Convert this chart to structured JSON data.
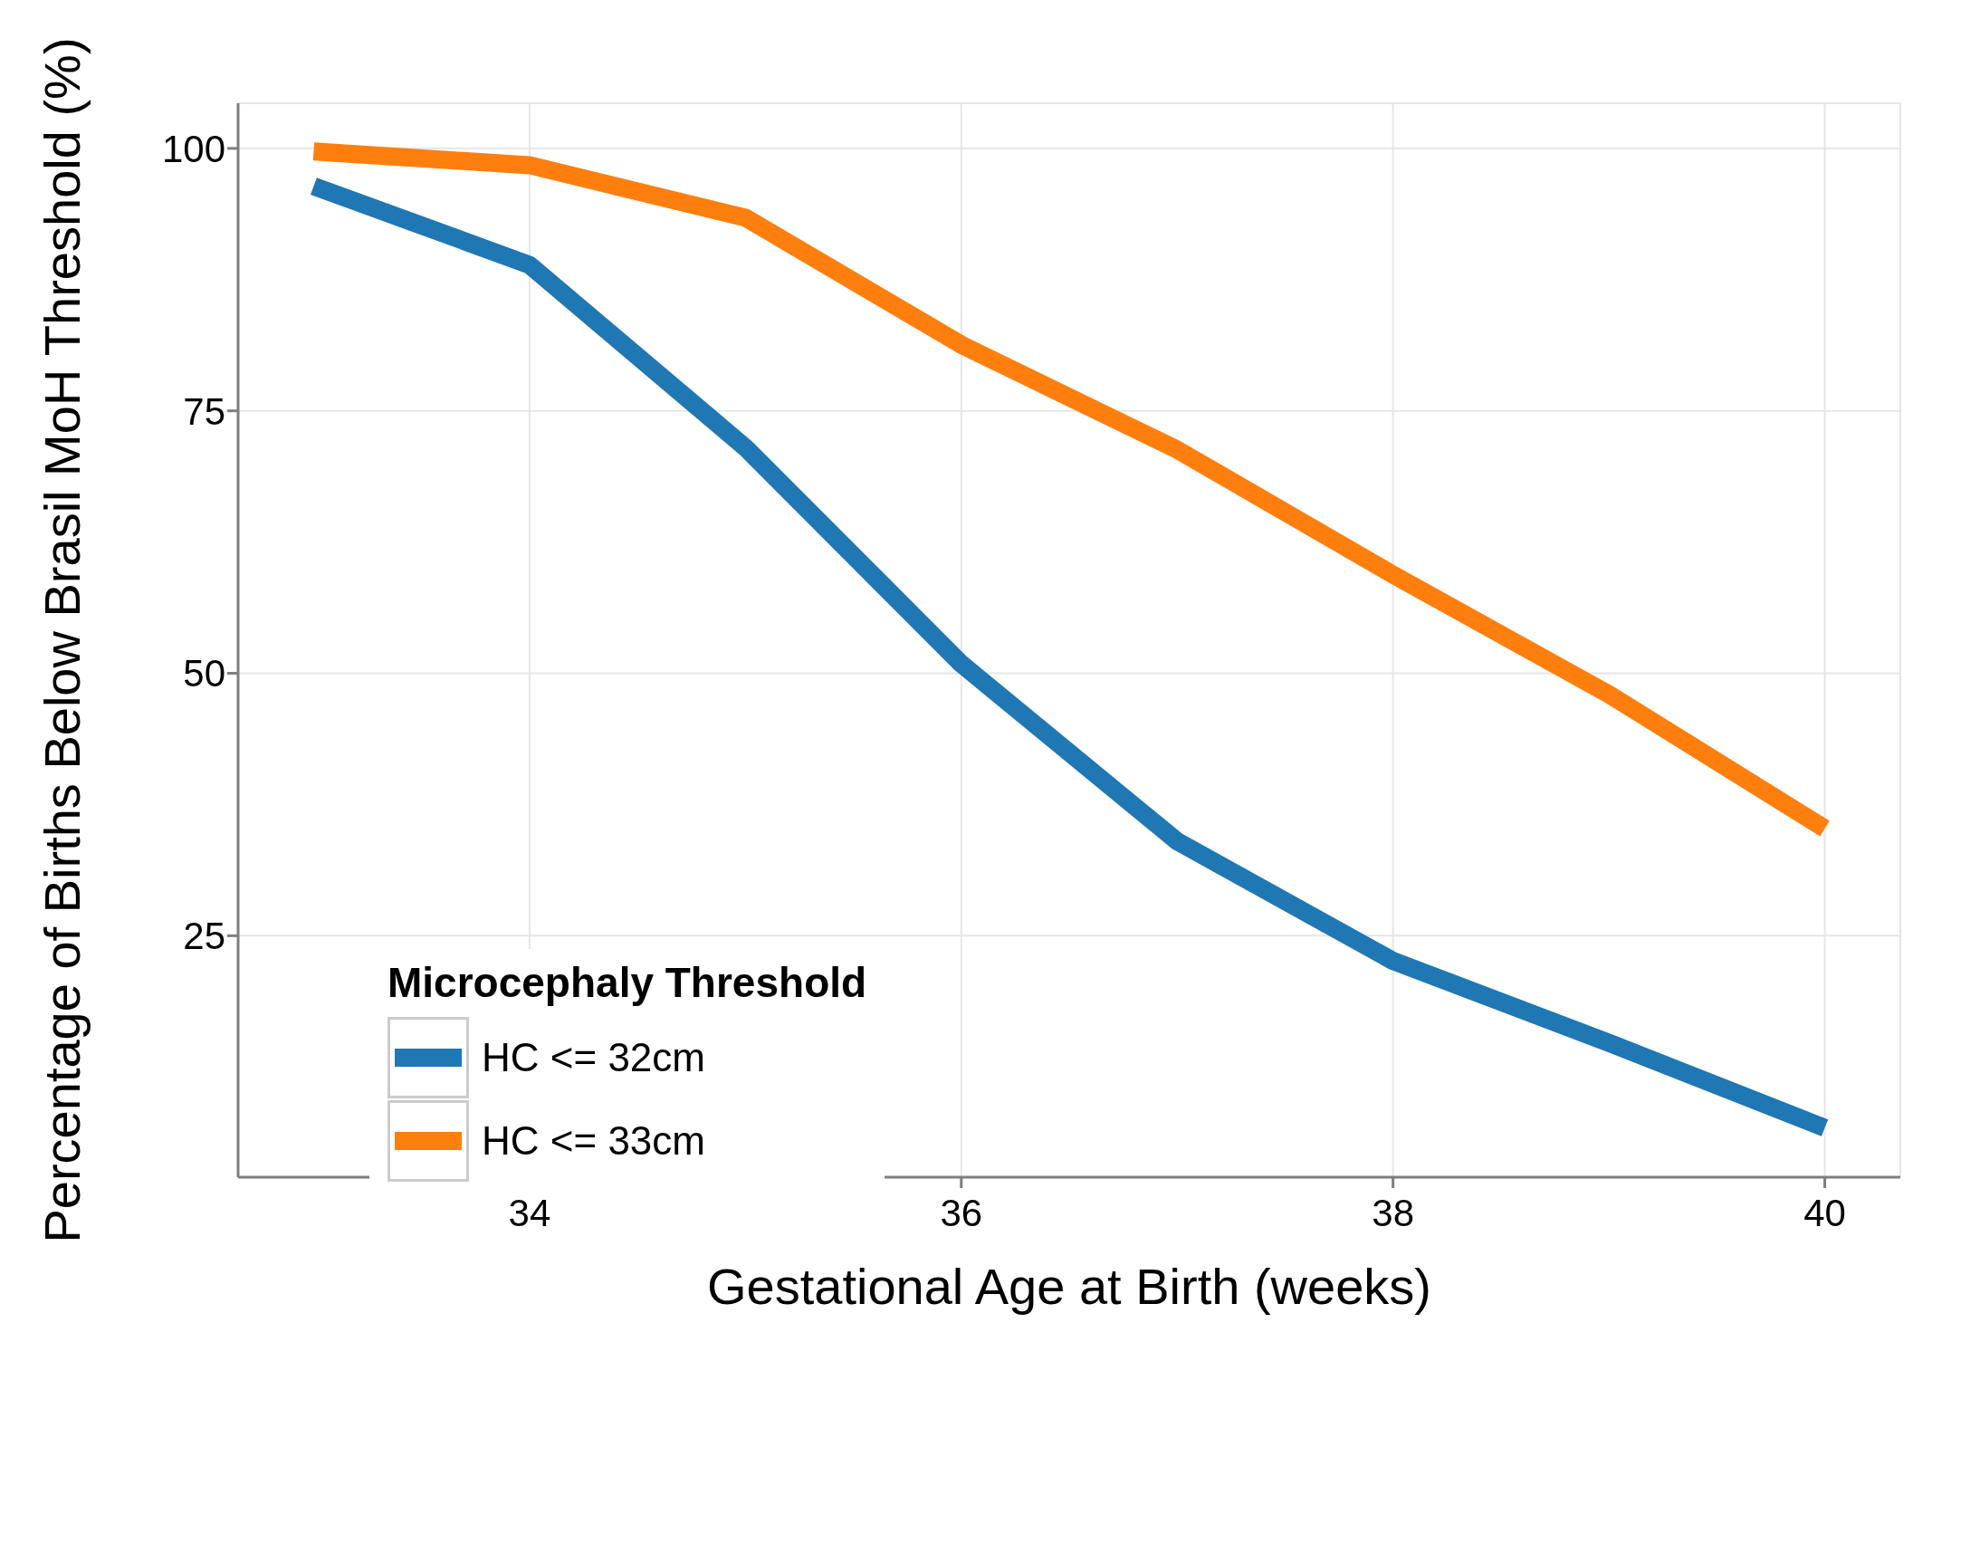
{
  "chart_data": {
    "type": "line",
    "xlabel": "Gestational Age at Birth (weeks)",
    "ylabel": "Percentage of Births Below Brasil MoH Threshold (%)",
    "legend_title": "Microcephaly Threshold",
    "x": [
      33,
      34,
      35,
      36,
      37,
      38,
      39,
      40
    ],
    "series": [
      {
        "name": "HC <= 32cm",
        "color": "#1f77b4",
        "values": [
          96.4,
          88.9,
          71.5,
          50.9,
          34.0,
          22.6,
          14.8,
          6.7
        ]
      },
      {
        "name": "HC <= 33cm",
        "color": "#ff7f0e",
        "values": [
          99.7,
          98.4,
          93.4,
          81.3,
          71.3,
          59.4,
          48.0,
          35.2
        ]
      }
    ],
    "xlim": [
      32.65,
      40.35
    ],
    "ylim": [
      2,
      104.3
    ],
    "xticks": [
      34,
      36,
      38,
      40
    ],
    "yticks": [
      25,
      50,
      75,
      100
    ],
    "grid": true,
    "legend": "bottom left",
    "line_style": "solid",
    "marker": "none"
  }
}
